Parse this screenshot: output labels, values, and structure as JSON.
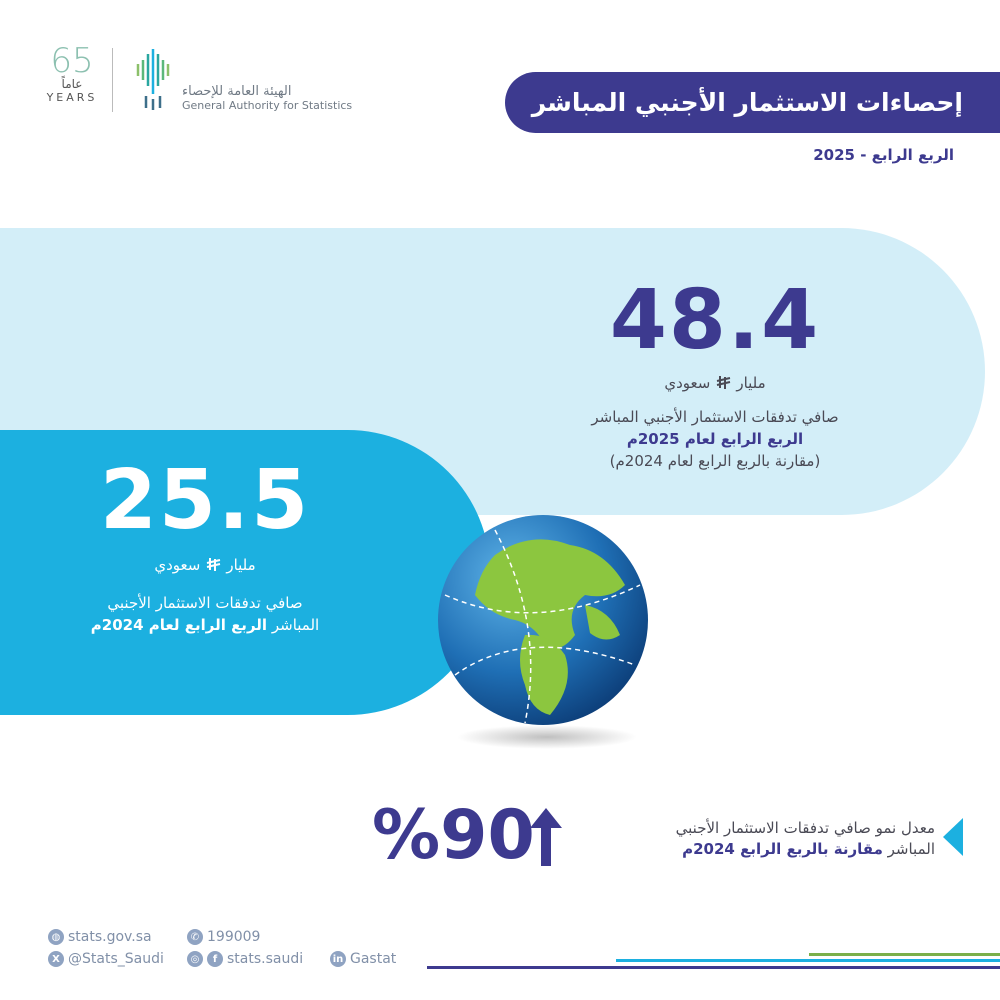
{
  "logo": {
    "years_number": "65",
    "years_ar": "عاماً",
    "years_en": "YEARS",
    "org_ar": "الهيئة العامة للإحصاء",
    "org_en": "General Authority for Statistics"
  },
  "header": {
    "title": "إحصاءات الاستثمار الأجنبي المباشر",
    "subtitle": "الربع الرابع - 2025"
  },
  "current": {
    "value": "48.4",
    "unit_before": "مليار",
    "unit_after": "سعودي",
    "line1": "صافي تدفقات الاستثمار الأجنبي المباشر",
    "line2": "الربع الرابع لعام 2025م",
    "line3": "(مقارنة بالربع الرابع لعام 2024م)"
  },
  "previous": {
    "value": "25.5",
    "unit_before": "مليار",
    "unit_after": "سعودي",
    "line1": "صافي تدفقات الاستثمار الأجنبي",
    "line2_prefix": "المباشر",
    "line2_bold": "الربع الرابع لعام 2024م"
  },
  "growth": {
    "value": "%90",
    "direction": "up",
    "line1": "معدل نمو صافي تدفقات الاستثمار الأجنبي",
    "line2_prefix": "المباشر",
    "line2_bold": "مقارنة بالربع الرابع 2024م"
  },
  "footer": {
    "website": "stats.gov.sa",
    "phone": "199009",
    "twitter": "@Stats_Saudi",
    "social": "stats.saudi",
    "linkedin": "Gastat"
  },
  "colors": {
    "purple": "#3d3a8f",
    "light_blue": "#d3eef8",
    "blue": "#1cb0e0",
    "green": "#7bb04a"
  }
}
